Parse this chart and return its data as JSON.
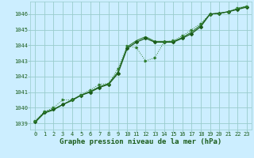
{
  "title": "Graphe pression niveau de la mer (hPa)",
  "hours": [
    0,
    1,
    2,
    3,
    4,
    5,
    6,
    7,
    8,
    9,
    10,
    11,
    12,
    13,
    14,
    15,
    16,
    17,
    18,
    19,
    20,
    21,
    22,
    23
  ],
  "ylim": [
    1038.6,
    1046.8
  ],
  "yticks": [
    1039,
    1040,
    1041,
    1042,
    1043,
    1044,
    1045,
    1046
  ],
  "background_color": "#cceeff",
  "grid_color": "#99cccc",
  "dark_green": "#1a5c1a",
  "mid_green": "#2e7d2e",
  "light_green": "#4aaa4a",
  "s_main": [
    1039.1,
    1039.7,
    1039.9,
    1040.2,
    1040.5,
    1040.8,
    1041.0,
    1041.3,
    1041.5,
    1042.2,
    1043.8,
    1044.2,
    1044.45,
    1044.2,
    1044.2,
    1044.2,
    1044.45,
    1044.75,
    1045.2,
    1046.0,
    1046.05,
    1046.15,
    1046.3,
    1046.45
  ],
  "s_upper": [
    1039.05,
    1039.65,
    1039.85,
    1040.2,
    1040.45,
    1040.8,
    1041.05,
    1041.35,
    1041.55,
    1042.3,
    1043.9,
    1044.3,
    1044.55,
    1044.25,
    1044.25,
    1044.25,
    1044.5,
    1044.85,
    1045.3,
    1046.0,
    1046.05,
    1046.15,
    1046.35,
    1046.5
  ],
  "s_dotted": [
    1039.15,
    1039.75,
    1040.0,
    1040.5,
    1040.5,
    1040.85,
    1041.15,
    1041.5,
    1041.55,
    1042.5,
    1043.95,
    1043.85,
    1043.0,
    1043.2,
    1044.2,
    1044.3,
    1044.6,
    1045.0,
    1045.4,
    1046.0,
    1046.05,
    1046.15,
    1046.4,
    1046.5
  ],
  "title_fontsize": 6.5,
  "tick_fontsize": 5.0
}
